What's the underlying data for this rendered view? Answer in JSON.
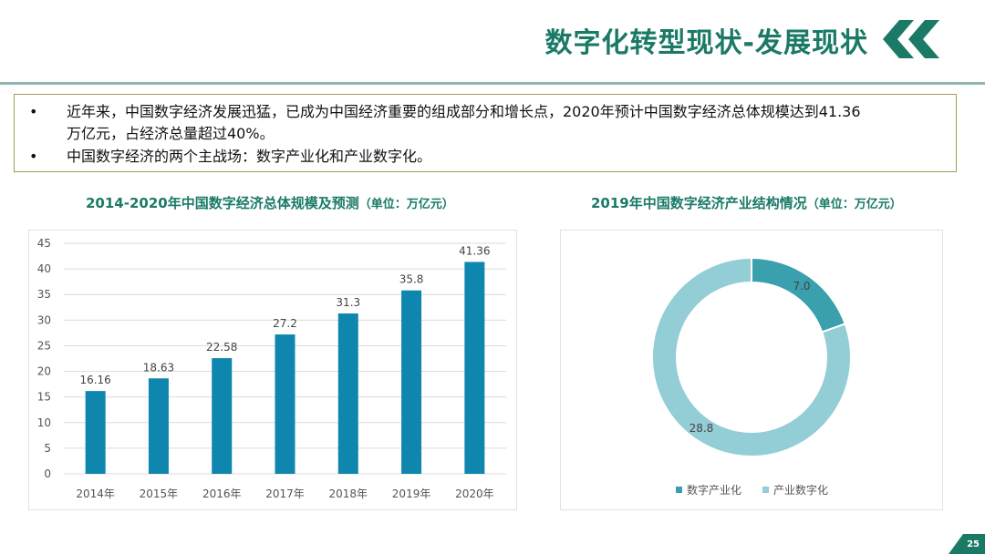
{
  "header": {
    "title": "数字化转型现状-发展现状",
    "accent": "#1a7a66"
  },
  "bullets": [
    {
      "dot": "•",
      "line1": "近年来，中国数字经济发展迅猛，已成为中国经济重要的组成部分和增长点，2020年预计中国数字经济总体规模达到41.36",
      "line2": "万亿元，占经济总量超过40%。"
    },
    {
      "dot": "•",
      "line1": "中国数字经济的两个主战场：数字产业化和产业数字化。"
    }
  ],
  "chart_data": [
    {
      "type": "bar",
      "title": "2014-2020年中国数字经济总体规模及预测",
      "unit": "（单位：万亿元）",
      "categories": [
        "2014年",
        "2015年",
        "2016年",
        "2017年",
        "2018年",
        "2019年",
        "2020年"
      ],
      "values": [
        16.16,
        18.63,
        22.58,
        27.2,
        31.3,
        35.8,
        41.36
      ],
      "labels": [
        "16.16",
        "18.63",
        "22.58",
        "27.2",
        "31.3",
        "35.8",
        "41.36"
      ],
      "ylim": [
        0,
        45
      ],
      "yticks": [
        "0",
        "5",
        "10",
        "15",
        "20",
        "25",
        "30",
        "35",
        "40",
        "45"
      ],
      "grid": true,
      "color": "#0e86ad"
    },
    {
      "type": "pie",
      "title": "2019年中国数字经济产业结构情况",
      "unit": "（单位：万亿元）",
      "categories": [
        "数字产业化",
        "产业数字化"
      ],
      "values": [
        7.0,
        28.8
      ],
      "labels": [
        "7.0",
        "28.8"
      ],
      "colors": [
        "#3aa0ad",
        "#93cdd6"
      ],
      "legend": "bottom"
    }
  ],
  "footer": {
    "page_number": "25"
  }
}
